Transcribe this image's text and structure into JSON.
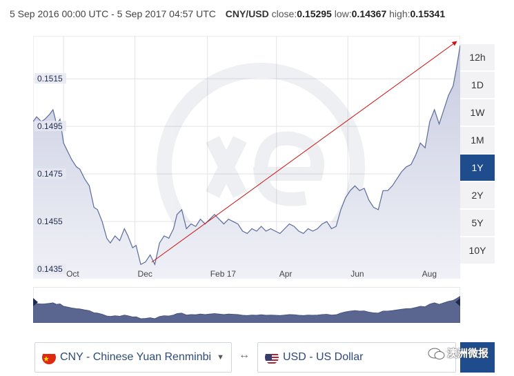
{
  "header": {
    "range": "5 Sep 2016 00:00 UTC - 5 Sep 2017 04:57 UTC",
    "pair": "CNY/USD",
    "close_label": "close:",
    "close_value": "0.15295",
    "low_label": "low:",
    "low_value": "0.14367",
    "high_label": "high:",
    "high_value": "0.15341"
  },
  "range_buttons": [
    {
      "label": "12h",
      "active": false
    },
    {
      "label": "1D",
      "active": false
    },
    {
      "label": "1W",
      "active": false
    },
    {
      "label": "1M",
      "active": false
    },
    {
      "label": "1Y",
      "active": true
    },
    {
      "label": "2Y",
      "active": false
    },
    {
      "label": "5Y",
      "active": false
    },
    {
      "label": "10Y",
      "active": false
    }
  ],
  "converter": {
    "from_label": "CNY - Chinese Yuan Renminbi",
    "to_label": "USD - US Dollar",
    "swap_symbol": "↔",
    "caret": "▼"
  },
  "watermark": {
    "text": "澳洲微报"
  },
  "colors": {
    "line": "#5a6a99",
    "area_top": "#c7cbe0",
    "area_bottom": "#f0f1f7",
    "grid": "#e3e3e8",
    "arrow": "#cc1111",
    "accent": "#1e4c8c",
    "navigator_fill": "#5b6690"
  },
  "chart_data": {
    "type": "area",
    "x_start": "2016-09-05",
    "x_end": "2017-09-05",
    "ylim": [
      0.1431,
      0.1533
    ],
    "y_ticks": [
      0.1435,
      0.1455,
      0.1475,
      0.1495,
      0.1515
    ],
    "y_tick_labels": [
      "0.1435",
      "0.1455",
      "0.1475",
      "0.1495",
      "0.1515"
    ],
    "x_ticks": [
      {
        "date": "2016-10-01",
        "label": "Oct"
      },
      {
        "date": "2016-12-01",
        "label": "Dec"
      },
      {
        "date": "2017-02-01",
        "label": "Feb 17"
      },
      {
        "date": "2017-04-01",
        "label": "Apr"
      },
      {
        "date": "2017-06-01",
        "label": "Jun"
      },
      {
        "date": "2017-08-01",
        "label": "Aug"
      }
    ],
    "grid": true,
    "series": [
      {
        "x": [
          "2016-09-05",
          "2016-09-08",
          "2016-09-12",
          "2016-09-15",
          "2016-09-19",
          "2016-09-22",
          "2016-09-25",
          "2016-09-28",
          "2016-10-01",
          "2016-10-05",
          "2016-10-08",
          "2016-10-12",
          "2016-10-15",
          "2016-10-19",
          "2016-10-23",
          "2016-10-27",
          "2016-10-30",
          "2016-11-03",
          "2016-11-07",
          "2016-11-10",
          "2016-11-14",
          "2016-11-18",
          "2016-11-22",
          "2016-11-25",
          "2016-11-29",
          "2016-12-02",
          "2016-12-06",
          "2016-12-10",
          "2016-12-14",
          "2016-12-18",
          "2016-12-22",
          "2016-12-26",
          "2016-12-30",
          "2017-01-03",
          "2017-01-06",
          "2017-01-10",
          "2017-01-14",
          "2017-01-18",
          "2017-01-22",
          "2017-01-26",
          "2017-01-30",
          "2017-02-03",
          "2017-02-07",
          "2017-02-11",
          "2017-02-15",
          "2017-02-19",
          "2017-02-23",
          "2017-02-27",
          "2017-03-03",
          "2017-03-07",
          "2017-03-11",
          "2017-03-15",
          "2017-03-19",
          "2017-03-23",
          "2017-03-27",
          "2017-03-31",
          "2017-04-04",
          "2017-04-08",
          "2017-04-12",
          "2017-04-16",
          "2017-04-20",
          "2017-04-24",
          "2017-04-28",
          "2017-05-02",
          "2017-05-06",
          "2017-05-10",
          "2017-05-14",
          "2017-05-18",
          "2017-05-22",
          "2017-05-26",
          "2017-05-30",
          "2017-06-03",
          "2017-06-07",
          "2017-06-11",
          "2017-06-15",
          "2017-06-19",
          "2017-06-23",
          "2017-06-27",
          "2017-07-01",
          "2017-07-05",
          "2017-07-09",
          "2017-07-13",
          "2017-07-17",
          "2017-07-21",
          "2017-07-25",
          "2017-07-29",
          "2017-08-02",
          "2017-08-06",
          "2017-08-10",
          "2017-08-14",
          "2017-08-18",
          "2017-08-22",
          "2017-08-26",
          "2017-08-30",
          "2017-09-02",
          "2017-09-05"
        ],
        "y": [
          0.1497,
          0.1499,
          0.1497,
          0.1498,
          0.15,
          0.1502,
          0.1496,
          0.1498,
          0.1488,
          0.1484,
          0.1481,
          0.1478,
          0.1477,
          0.1473,
          0.147,
          0.1461,
          0.146,
          0.1455,
          0.1448,
          0.1446,
          0.1449,
          0.1447,
          0.1452,
          0.1449,
          0.1444,
          0.1445,
          0.1437,
          0.1438,
          0.1441,
          0.1437,
          0.1446,
          0.1449,
          0.1448,
          0.1452,
          0.1458,
          0.146,
          0.1452,
          0.1454,
          0.1453,
          0.1456,
          0.1454,
          0.1456,
          0.1458,
          0.1456,
          0.1454,
          0.1456,
          0.1455,
          0.1454,
          0.1451,
          0.145,
          0.1452,
          0.1451,
          0.1453,
          0.1451,
          0.1452,
          0.1451,
          0.145,
          0.1452,
          0.1454,
          0.1453,
          0.1451,
          0.145,
          0.1452,
          0.1451,
          0.1452,
          0.1454,
          0.1455,
          0.1452,
          0.1453,
          0.146,
          0.1465,
          0.1468,
          0.147,
          0.1468,
          0.1469,
          0.1464,
          0.1461,
          0.146,
          0.1468,
          0.1468,
          0.147,
          0.1473,
          0.1476,
          0.1478,
          0.1479,
          0.1483,
          0.1488,
          0.1486,
          0.1497,
          0.1502,
          0.1496,
          0.1502,
          0.1508,
          0.1512,
          0.152,
          0.1529
        ]
      }
    ]
  }
}
